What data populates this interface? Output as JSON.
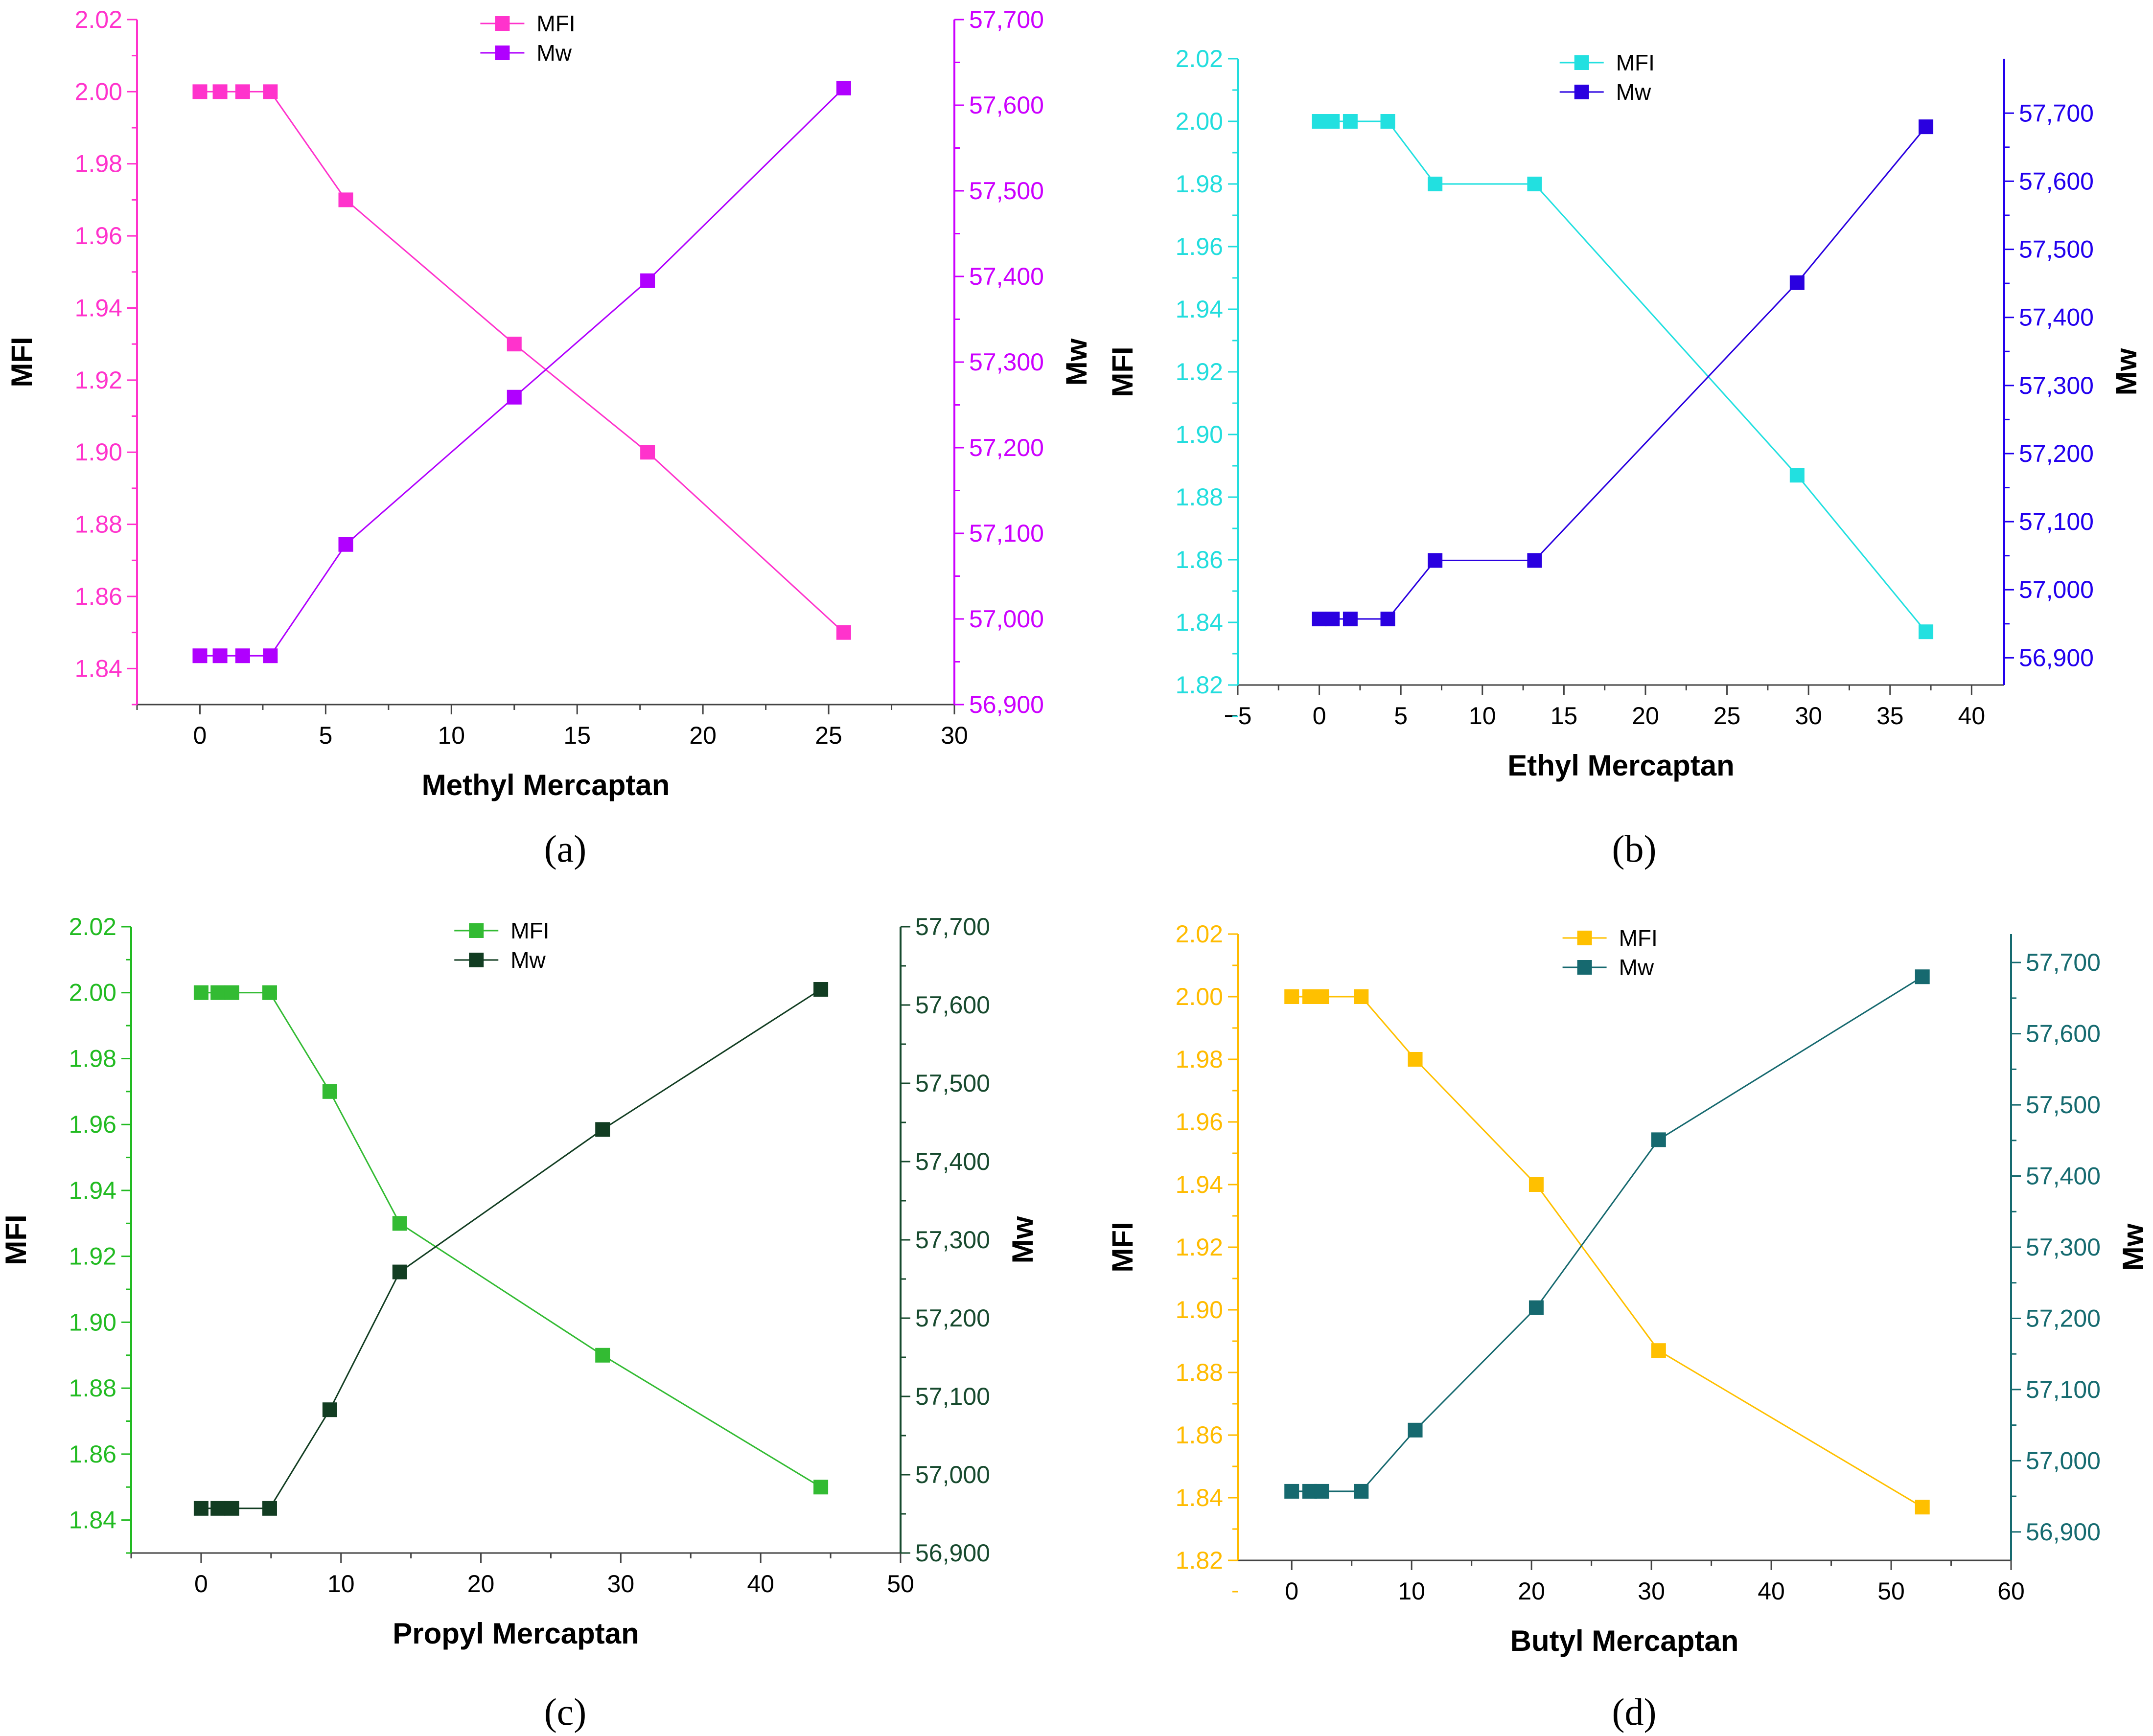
{
  "charts": [
    {
      "caption": "(a)",
      "chart_data": {
        "type": "line",
        "xlabel": "Methyl Mercaptan",
        "ylabel": "MFI",
        "y2label": "Mw",
        "xlim": [
          -2.5,
          30
        ],
        "xticks": [
          0,
          5,
          10,
          15,
          20,
          25,
          30
        ],
        "ylim": [
          1.83,
          2.02
        ],
        "yticks": [
          1.84,
          1.86,
          1.88,
          1.9,
          1.92,
          1.94,
          1.96,
          1.98,
          2.0,
          2.02
        ],
        "y2lim": [
          56900,
          57700
        ],
        "y2ticks": [
          56900,
          57000,
          57100,
          57200,
          57300,
          57400,
          57500,
          57600,
          57700
        ],
        "left_color": "#ff33cc",
        "right_color": "#cc00ff",
        "legend": "top-center",
        "series": [
          {
            "name": "MFI",
            "axis": "left",
            "color": "#ff33cc",
            "x": [
              0,
              0.8,
              1.7,
              2.8,
              5.8,
              12.5,
              17.8,
              25.6
            ],
            "y": [
              2.0,
              2.0,
              2.0,
              2.0,
              1.97,
              1.93,
              1.9,
              1.85
            ]
          },
          {
            "name": "Mw",
            "axis": "right",
            "color": "#b000ff",
            "x": [
              0,
              0.8,
              1.7,
              2.8,
              5.8,
              12.5,
              17.8,
              25.6
            ],
            "y": [
              56957,
              56957,
              56957,
              56957,
              57087,
              57259,
              57395,
              57620
            ]
          }
        ]
      }
    },
    {
      "caption": "(b)",
      "chart_data": {
        "type": "line",
        "xlabel": "Ethyl Mercaptan",
        "ylabel": "MFI",
        "y2label": "Mw",
        "xlim": [
          -5,
          42
        ],
        "xticks": [
          -5,
          0,
          5,
          10,
          15,
          20,
          25,
          30,
          35,
          40
        ],
        "xtick_labels": [
          "−5",
          "0",
          "5",
          "10",
          "15",
          "20",
          "25",
          "30",
          "35",
          "40"
        ],
        "ylim": [
          1.82,
          2.02
        ],
        "yticks": [
          1.82,
          1.84,
          1.86,
          1.88,
          1.9,
          1.92,
          1.94,
          1.96,
          1.98,
          2.0,
          2.02
        ],
        "y2lim": [
          56860,
          57780
        ],
        "y2ticks": [
          56900,
          57000,
          57100,
          57200,
          57300,
          57400,
          57500,
          57600,
          57700
        ],
        "left_color": "#22dddd",
        "right_color": "#2200ee",
        "legend": "top-center",
        "series": [
          {
            "name": "MFI",
            "axis": "left",
            "color": "#22e0e0",
            "x": [
              0,
              0.8,
              1.9,
              4.2,
              7.1,
              13.2,
              29.3,
              37.2
            ],
            "y": [
              2.0,
              2.0,
              2.0,
              2.0,
              1.98,
              1.98,
              1.887,
              1.837
            ]
          },
          {
            "name": "Mw",
            "axis": "right",
            "color": "#2a00e0",
            "x": [
              0,
              0.8,
              1.9,
              4.2,
              7.1,
              13.2,
              29.3,
              37.2
            ],
            "y": [
              56957,
              56957,
              56957,
              56957,
              57043,
              57043,
              57451,
              57680
            ]
          }
        ]
      }
    },
    {
      "caption": "(c)",
      "chart_data": {
        "type": "line",
        "xlabel": "Propyl Mercaptan",
        "ylabel": "MFI",
        "y2label": "Mw",
        "xlim": [
          -5,
          50
        ],
        "xticks": [
          0,
          10,
          20,
          30,
          40,
          50
        ],
        "ylim": [
          1.83,
          2.02
        ],
        "yticks": [
          1.84,
          1.86,
          1.88,
          1.9,
          1.92,
          1.94,
          1.96,
          1.98,
          2.0,
          2.02
        ],
        "y2lim": [
          56900,
          57700
        ],
        "y2ticks": [
          56900,
          57000,
          57100,
          57200,
          57300,
          57400,
          57500,
          57600,
          57700
        ],
        "left_color": "#22bb22",
        "right_color": "#174a2e",
        "legend": "top-center",
        "series": [
          {
            "name": "MFI",
            "axis": "left",
            "color": "#33bb33",
            "x": [
              0,
              1.2,
              2.2,
              4.9,
              9.2,
              14.2,
              28.7,
              44.3
            ],
            "y": [
              2.0,
              2.0,
              2.0,
              2.0,
              1.97,
              1.93,
              1.89,
              1.85
            ]
          },
          {
            "name": "Mw",
            "axis": "right",
            "color": "#123d22",
            "x": [
              0,
              1.2,
              2.2,
              4.9,
              9.2,
              14.2,
              28.7,
              44.3
            ],
            "y": [
              56957,
              56957,
              56957,
              56957,
              57083,
              57259,
              57441,
              57620
            ]
          }
        ]
      }
    },
    {
      "caption": "(d)",
      "chart_data": {
        "type": "line",
        "xlabel": "Butyl Mercaptan",
        "ylabel": "MFI",
        "y2label": "Mw",
        "xlim": [
          -4.5,
          60
        ],
        "xticks": [
          0,
          10,
          20,
          30,
          40,
          50,
          60
        ],
        "ylim": [
          1.82,
          2.02
        ],
        "yticks": [
          1.82,
          1.84,
          1.86,
          1.88,
          1.9,
          1.92,
          1.94,
          1.96,
          1.98,
          2.0,
          2.02
        ],
        "y2lim": [
          56860,
          57740
        ],
        "y2ticks": [
          56900,
          57000,
          57100,
          57200,
          57300,
          57400,
          57500,
          57600,
          57700
        ],
        "left_color": "#ffbb00",
        "right_color": "#166b70",
        "legend": "top-center",
        "series": [
          {
            "name": "MFI",
            "axis": "left",
            "color": "#ffc000",
            "x": [
              0,
              1.5,
              2.5,
              5.8,
              10.3,
              20.4,
              30.6,
              52.6
            ],
            "y": [
              2.0,
              2.0,
              2.0,
              2.0,
              1.98,
              1.94,
              1.887,
              1.837
            ]
          },
          {
            "name": "Mw",
            "axis": "right",
            "color": "#16696f",
            "x": [
              0,
              1.5,
              2.5,
              5.8,
              10.3,
              20.4,
              30.6,
              52.6
            ],
            "y": [
              56957,
              56957,
              56957,
              56957,
              57043,
              57215,
              57451,
              57680
            ]
          }
        ]
      }
    }
  ]
}
